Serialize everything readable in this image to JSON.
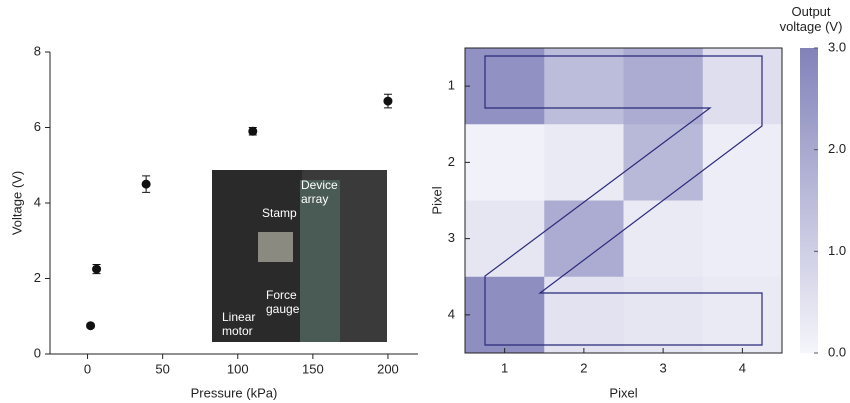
{
  "chart_data": [
    {
      "type": "scatter",
      "x_label": "Pressure (kPa)",
      "y_label": "Voltage (V)",
      "x": [
        2,
        6,
        39,
        110,
        200
      ],
      "values": [
        0.75,
        2.25,
        4.5,
        5.9,
        6.7
      ],
      "errors": [
        0.05,
        0.12,
        0.22,
        0.1,
        0.18
      ],
      "color": "#111111",
      "xlim": [
        -25,
        220
      ],
      "ylim": [
        0,
        8
      ],
      "xticks": [
        0,
        50,
        100,
        150,
        200
      ],
      "yticks": [
        0,
        2,
        4,
        6,
        8
      ],
      "annotations": [
        "Device array",
        "Stamp",
        "Force gauge",
        "Linear motor"
      ]
    },
    {
      "type": "heatmap",
      "x_label": "Pixel",
      "y_label": "Pixel",
      "x_categories": [
        "1",
        "2",
        "3",
        "4"
      ],
      "y_categories": [
        "1",
        "2",
        "3",
        "4"
      ],
      "values": [
        [
          2.6,
          1.5,
          1.9,
          0.6
        ],
        [
          0.1,
          0.3,
          1.6,
          0.2
        ],
        [
          0.4,
          1.9,
          0.3,
          0.2
        ],
        [
          2.7,
          0.5,
          0.4,
          0.3
        ]
      ],
      "colorbar_title": "Output voltage (V)",
      "colorlim": [
        0,
        3
      ],
      "colorticks": [
        {
          "value": 0,
          "label": "0.0"
        },
        {
          "value": 1,
          "label": "1.0"
        },
        {
          "value": 2,
          "label": "2.0"
        },
        {
          "value": 3,
          "label": "3.0"
        }
      ],
      "colors": [
        "#f5f5fb",
        "#8282ba"
      ]
    }
  ]
}
